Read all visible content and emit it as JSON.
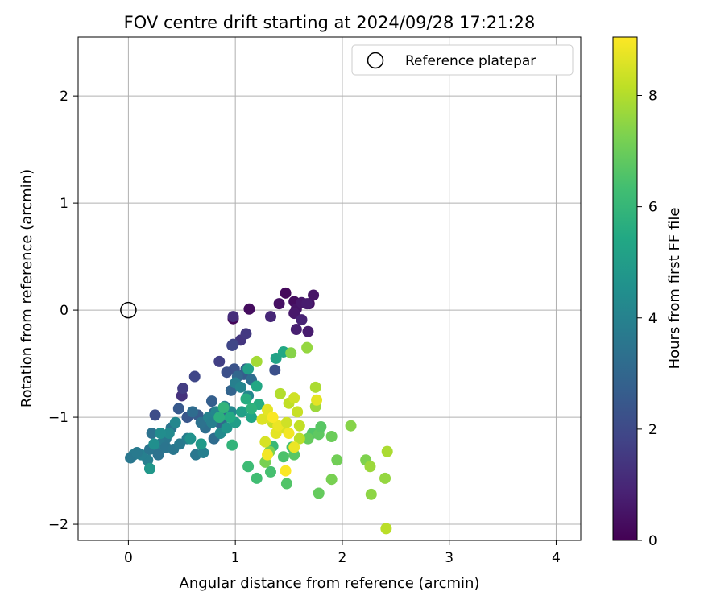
{
  "chart_data": {
    "type": "scatter",
    "title": "FOV centre drift starting at 2024/09/28 17:21:28",
    "xlabel": "Angular distance from reference (arcmin)",
    "ylabel": "Rotation from reference (arcmin)",
    "xlim": [
      -0.47,
      4.23
    ],
    "ylim": [
      -2.15,
      2.55
    ],
    "xticks": [
      "0",
      "1",
      "2",
      "3",
      "4"
    ],
    "yticks": [
      "−2",
      "−1",
      "0",
      "1",
      "2"
    ],
    "grid": true,
    "legend": {
      "position": "top-right",
      "entries": [
        "Reference platepar"
      ]
    },
    "reference_point": {
      "label": "Reference platepar",
      "x": 0.0,
      "y": 0.0
    },
    "colorbar": {
      "label": "Hours from first FF file",
      "min": 0,
      "max": 9.05,
      "ticks": [
        "0",
        "2",
        "4",
        "6",
        "8"
      ],
      "colormap": "viridis"
    },
    "columns": [
      "x",
      "y",
      "hours"
    ],
    "points": [
      [
        0.98,
        -0.08,
        0.1
      ],
      [
        1.13,
        0.01,
        0.3
      ],
      [
        1.47,
        0.16,
        0.2
      ],
      [
        1.41,
        0.06,
        0.4
      ],
      [
        1.55,
        0.08,
        0.3
      ],
      [
        1.57,
        0.01,
        0.5
      ],
      [
        1.62,
        0.07,
        0.6
      ],
      [
        1.69,
        0.06,
        0.4
      ],
      [
        1.73,
        0.14,
        0.5
      ],
      [
        1.67,
        0.06,
        0.7
      ],
      [
        1.55,
        -0.03,
        0.6
      ],
      [
        1.57,
        -0.18,
        0.8
      ],
      [
        1.62,
        -0.09,
        0.9
      ],
      [
        1.68,
        -0.2,
        0.7
      ],
      [
        1.33,
        -0.06,
        1.0
      ],
      [
        1.05,
        -0.28,
        1.4
      ],
      [
        1.1,
        -0.22,
        1.5
      ],
      [
        0.98,
        -0.32,
        1.8
      ],
      [
        0.97,
        -0.33,
        1.9
      ],
      [
        0.98,
        -0.06,
        1.2
      ],
      [
        0.85,
        -0.48,
        1.7
      ],
      [
        0.5,
        -0.8,
        1.3
      ],
      [
        0.51,
        -0.73,
        1.6
      ],
      [
        1.37,
        -0.56,
        2.2
      ],
      [
        0.62,
        -0.62,
        1.9
      ],
      [
        0.99,
        -0.55,
        2.3
      ],
      [
        0.92,
        -0.58,
        2.2
      ],
      [
        1.08,
        -0.6,
        2.6
      ],
      [
        0.25,
        -0.98,
        2.1
      ],
      [
        0.47,
        -0.92,
        2.5
      ],
      [
        0.55,
        -1.0,
        2.4
      ],
      [
        0.65,
        -0.98,
        2.6
      ],
      [
        0.78,
        -0.85,
        2.7
      ],
      [
        0.8,
        -0.96,
        2.9
      ],
      [
        0.85,
        -1.05,
        3.0
      ],
      [
        0.9,
        -1.0,
        3.1
      ],
      [
        0.96,
        -0.75,
        2.9
      ],
      [
        1.02,
        -0.62,
        3.0
      ],
      [
        1.1,
        -0.55,
        2.8
      ],
      [
        1.15,
        -0.65,
        3.2
      ],
      [
        0.8,
        -1.2,
        3.2
      ],
      [
        0.72,
        -1.1,
        3.3
      ],
      [
        0.68,
        -1.05,
        3.4
      ],
      [
        0.6,
        -0.95,
        3.2
      ],
      [
        0.4,
        -1.1,
        3.5
      ],
      [
        0.35,
        -1.2,
        3.6
      ],
      [
        0.3,
        -1.25,
        3.7
      ],
      [
        0.25,
        -1.3,
        3.8
      ],
      [
        0.22,
        -1.15,
        3.4
      ],
      [
        0.18,
        -1.4,
        3.9
      ],
      [
        0.12,
        -1.35,
        3.9
      ],
      [
        0.05,
        -1.35,
        3.8
      ],
      [
        0.02,
        -1.38,
        3.6
      ],
      [
        0.08,
        -1.33,
        3.7
      ],
      [
        0.2,
        -1.3,
        3.5
      ],
      [
        0.28,
        -1.35,
        3.4
      ],
      [
        0.35,
        -1.28,
        3.5
      ],
      [
        0.42,
        -1.3,
        3.6
      ],
      [
        0.48,
        -1.25,
        3.7
      ],
      [
        0.55,
        -1.2,
        3.8
      ],
      [
        0.63,
        -1.35,
        3.6
      ],
      [
        0.7,
        -1.33,
        3.9
      ],
      [
        0.75,
        -1.0,
        4.0
      ],
      [
        0.82,
        -0.95,
        4.1
      ],
      [
        0.9,
        -0.9,
        4.0
      ],
      [
        0.96,
        -0.95,
        4.2
      ],
      [
        1.0,
        -0.68,
        3.9
      ],
      [
        1.05,
        -0.72,
        4.1
      ],
      [
        1.12,
        -0.8,
        4.2
      ],
      [
        0.86,
        -1.15,
        4.3
      ],
      [
        0.78,
        -1.05,
        3.9
      ],
      [
        0.44,
        -1.05,
        4.2
      ],
      [
        0.38,
        -1.15,
        4.3
      ],
      [
        0.3,
        -1.15,
        4.4
      ],
      [
        0.24,
        -1.25,
        4.5
      ],
      [
        0.2,
        -1.48,
        4.8
      ],
      [
        0.58,
        -1.2,
        4.6
      ],
      [
        0.68,
        -1.25,
        4.9
      ],
      [
        0.92,
        -1.1,
        4.7
      ],
      [
        1.0,
        -1.05,
        5.0
      ],
      [
        1.06,
        -0.95,
        5.1
      ],
      [
        1.15,
        -1.0,
        5.3
      ],
      [
        1.2,
        -0.71,
        5.4
      ],
      [
        1.38,
        -0.45,
        5.2
      ],
      [
        1.45,
        -0.39,
        5.4
      ],
      [
        1.22,
        -0.88,
        5.6
      ],
      [
        1.12,
        -0.55,
        5.1
      ],
      [
        1.1,
        -0.83,
        5.6
      ],
      [
        1.15,
        -0.92,
        5.8
      ],
      [
        0.95,
        -1.0,
        5.5
      ],
      [
        0.89,
        -0.91,
        5.9
      ],
      [
        0.85,
        -1.0,
        5.7
      ],
      [
        0.97,
        -1.26,
        5.9
      ],
      [
        1.12,
        -1.46,
        6.2
      ],
      [
        1.2,
        -1.57,
        6.3
      ],
      [
        1.35,
        -1.27,
        6.1
      ],
      [
        1.53,
        -1.28,
        6.3
      ],
      [
        1.45,
        -1.37,
        6.5
      ],
      [
        1.33,
        -1.51,
        6.4
      ],
      [
        1.48,
        -1.62,
        6.6
      ],
      [
        1.55,
        -1.35,
        6.7
      ],
      [
        1.72,
        -1.15,
        6.6
      ],
      [
        1.78,
        -1.16,
        6.8
      ],
      [
        1.8,
        -1.09,
        6.7
      ],
      [
        1.68,
        -1.2,
        6.9
      ],
      [
        1.9,
        -1.18,
        7.0
      ],
      [
        1.95,
        -1.4,
        7.1
      ],
      [
        1.9,
        -1.58,
        7.2
      ],
      [
        1.78,
        -1.71,
        6.9
      ],
      [
        2.08,
        -1.08,
        7.4
      ],
      [
        2.22,
        -1.4,
        7.3
      ],
      [
        2.27,
        -1.72,
        7.5
      ],
      [
        2.4,
        -1.57,
        7.6
      ],
      [
        2.42,
        -1.32,
        7.9
      ],
      [
        2.26,
        -1.46,
        7.7
      ],
      [
        2.41,
        -2.04,
        8.1
      ],
      [
        1.28,
        -1.42,
        7.2
      ],
      [
        1.32,
        -1.32,
        7.3
      ],
      [
        1.52,
        -0.4,
        7.4
      ],
      [
        1.67,
        -0.35,
        7.6
      ],
      [
        1.2,
        -0.48,
        7.8
      ],
      [
        1.75,
        -0.72,
        7.9
      ],
      [
        1.75,
        -0.9,
        7.7
      ],
      [
        1.42,
        -0.78,
        8.0
      ],
      [
        1.5,
        -0.87,
        8.2
      ],
      [
        1.58,
        -0.95,
        8.3
      ],
      [
        1.55,
        -0.82,
        8.4
      ],
      [
        1.6,
        -1.2,
        8.1
      ],
      [
        1.35,
        -1.05,
        8.3
      ],
      [
        1.45,
        -1.1,
        8.5
      ],
      [
        1.3,
        -1.0,
        8.6
      ],
      [
        1.28,
        -1.23,
        8.5
      ],
      [
        1.38,
        -1.15,
        8.7
      ],
      [
        1.4,
        -1.08,
        8.8
      ],
      [
        1.5,
        -1.15,
        8.9
      ],
      [
        1.47,
        -1.5,
        9.0
      ],
      [
        1.55,
        -1.28,
        8.8
      ],
      [
        1.3,
        -1.35,
        8.9
      ],
      [
        1.25,
        -1.02,
        8.6
      ],
      [
        1.3,
        -0.93,
        8.7
      ],
      [
        1.48,
        -1.05,
        8.4
      ],
      [
        1.6,
        -1.08,
        8.2
      ],
      [
        1.76,
        -0.84,
        8.7
      ],
      [
        1.35,
        -1.0,
        9.0
      ]
    ]
  }
}
